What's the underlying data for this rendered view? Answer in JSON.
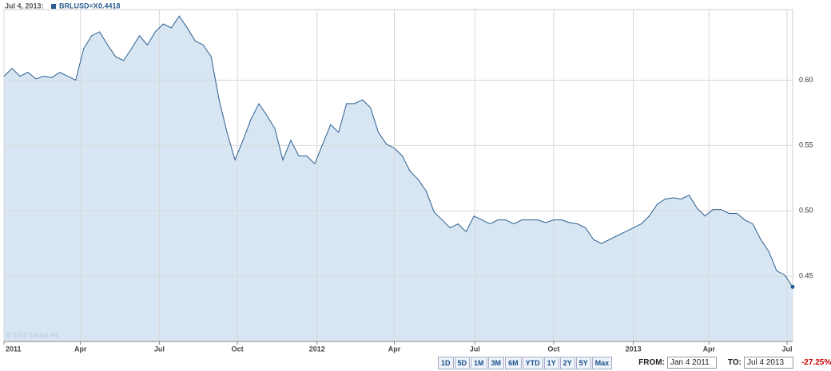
{
  "header": {
    "date_label": "Jul 4, 2013:"
  },
  "chart_data": {
    "type": "line",
    "area": true,
    "color": "#2b5d91",
    "fill": "#d7e6f2",
    "series": [
      {
        "name": "BRLUSD=X",
        "color": "#2b5d91",
        "values": [
          0.603,
          0.609,
          0.603,
          0.606,
          0.601,
          0.603,
          0.602,
          0.606,
          0.603,
          0.6,
          0.624,
          0.634,
          0.637,
          0.627,
          0.618,
          0.615,
          0.624,
          0.634,
          0.627,
          0.637,
          0.643,
          0.64,
          0.649,
          0.64,
          0.63,
          0.627,
          0.618,
          0.585,
          0.56,
          0.539,
          0.554,
          0.57,
          0.582,
          0.573,
          0.563,
          0.539,
          0.554,
          0.542,
          0.542,
          0.536,
          0.551,
          0.566,
          0.56,
          0.582,
          0.582,
          0.585,
          0.579,
          0.56,
          0.551,
          0.548,
          0.542,
          0.53,
          0.524,
          0.515,
          0.499,
          0.493,
          0.487,
          0.49,
          0.484,
          0.496,
          0.493,
          0.49,
          0.493,
          0.493,
          0.49,
          0.493,
          0.493,
          0.493,
          0.491,
          0.493,
          0.493,
          0.491,
          0.49,
          0.487,
          0.478,
          0.475,
          0.478,
          0.481,
          0.484,
          0.487,
          0.49,
          0.496,
          0.505,
          0.509,
          0.51,
          0.509,
          0.512,
          0.502,
          0.496,
          0.501,
          0.501,
          0.498,
          0.498,
          0.493,
          0.49,
          0.478,
          0.469,
          0.454,
          0.451,
          0.4418
        ]
      }
    ],
    "xlim": [
      0,
      99
    ],
    "xticks": [
      {
        "value": 0,
        "label": "2011"
      },
      {
        "value": 9.6,
        "label": "Apr"
      },
      {
        "value": 19.5,
        "label": "Jul"
      },
      {
        "value": 29.3,
        "label": "Oct"
      },
      {
        "value": 39.3,
        "label": "2012"
      },
      {
        "value": 49,
        "label": "Apr"
      },
      {
        "value": 59.1,
        "label": "Jul"
      },
      {
        "value": 69,
        "label": "Oct"
      },
      {
        "value": 79,
        "label": "2013"
      },
      {
        "value": 88.5,
        "label": "Apr"
      },
      {
        "value": 98.3,
        "label": "Jul"
      }
    ],
    "ylim": [
      0.4,
      0.654
    ],
    "yticks": [
      0.45,
      {
        "value": 0.5,
        "label": "0.50"
      },
      0.55,
      {
        "value": 0.6,
        "label": "0.60"
      }
    ],
    "grid": true,
    "copyright": "© 2013 Yahoo! Inc."
  },
  "controls": {
    "ranges": [
      "1D",
      "5D",
      "1M",
      "3M",
      "6M",
      "YTD",
      "1Y",
      "2Y",
      "5Y",
      "Max"
    ],
    "from_label": "FROM:",
    "from_value": "Jan 4 2011",
    "to_label": "TO:",
    "to_value": "Jul 4 2013",
    "change": "-27.25%"
  }
}
